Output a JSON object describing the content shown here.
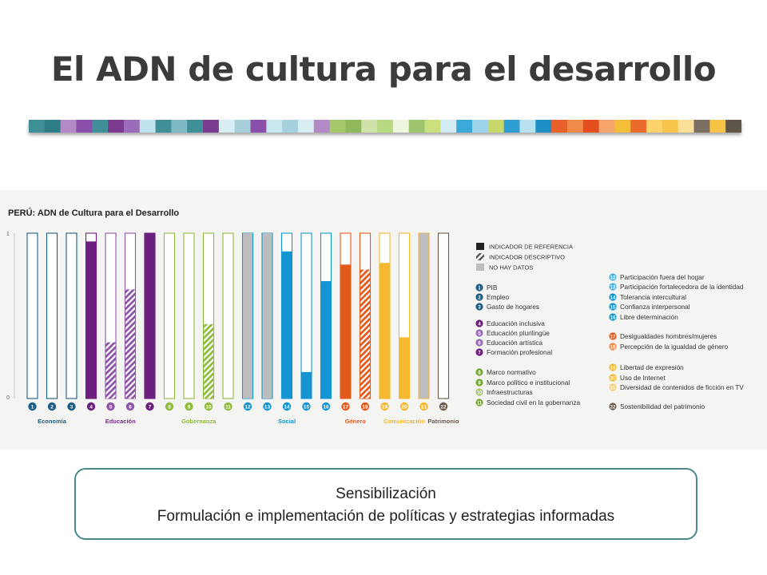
{
  "slide": {
    "title": "El ADN de cultura para el desarrollo",
    "stripe_colors": [
      "#3f8f96",
      "#2f7d86",
      "#b38ac6",
      "#8a4fa8",
      "#3f8f96",
      "#7a3b8f",
      "#9b6db8",
      "#bfe3ec",
      "#3f8f96",
      "#7fb9c4",
      "#3f8f96",
      "#7a3b8f",
      "#d6eef3",
      "#a6cfd9",
      "#8a4fa8",
      "#c8e6ee",
      "#a6d0db",
      "#d8ecf2",
      "#b38ac6",
      "#a4c86a",
      "#8fb85a",
      "#cfe3a8",
      "#b7d982",
      "#eef6e0",
      "#9cc56d",
      "#c9e07c",
      "#d2ecf3",
      "#3aa9d8",
      "#9fd5ea",
      "#c9d86a",
      "#2f9ed3",
      "#b9e1ef",
      "#1d8ec6",
      "#e8602a",
      "#f08a4b",
      "#e34f1f",
      "#f7a46d",
      "#f5be3a",
      "#e96a2a",
      "#fcd26a",
      "#f7c54a",
      "#fbe09a",
      "#7a6f62",
      "#f6c445",
      "#5e5549"
    ]
  },
  "chart_data": {
    "type": "bar",
    "title": "PERÚ: ADN de Cultura para el Desarrollo",
    "ylim": [
      0,
      1
    ],
    "y_ticks": [
      "0",
      "1"
    ],
    "categories": [
      "1",
      "2",
      "3",
      "4",
      "5",
      "6",
      "7",
      "8",
      "9",
      "10",
      "11",
      "12",
      "13",
      "14",
      "15",
      "16",
      "17",
      "18",
      "19",
      "20",
      "21",
      "22"
    ],
    "values": [
      0,
      0,
      0,
      0.95,
      0.34,
      0.66,
      1,
      0,
      0,
      0.45,
      0,
      1,
      1,
      0.89,
      0.16,
      0.71,
      0.81,
      0.78,
      0.82,
      0.37,
      1,
      0
    ],
    "fill_types": [
      "reference",
      "reference",
      "reference",
      "reference",
      "descriptive",
      "descriptive",
      "reference",
      "reference",
      "reference",
      "descriptive",
      "reference",
      "nodata",
      "nodata",
      "reference",
      "reference",
      "reference",
      "reference",
      "descriptive",
      "reference",
      "reference",
      "nodata",
      "reference"
    ],
    "colors": [
      "#1f5e86",
      "#1f5e86",
      "#1f5e86",
      "#6c1f7c",
      "#8f55a8",
      "#8f55a8",
      "#6c1f7c",
      "#8fbb3f",
      "#8fbb3f",
      "#8fbb3f",
      "#8fbb3f",
      "#1495d2",
      "#1495d2",
      "#1495d2",
      "#1495d2",
      "#1495d2",
      "#e35a1d",
      "#e35a1d",
      "#f5b82e",
      "#f5b82e",
      "#f5b82e",
      "#6b5a48"
    ],
    "groups": [
      {
        "label": "Economía",
        "color": "#1f5e86",
        "start": 0,
        "end": 2
      },
      {
        "label": "Educación",
        "color": "#7b2b8e",
        "start": 3,
        "end": 6
      },
      {
        "label": "Gobernanza",
        "color": "#8fbb3f",
        "start": 7,
        "end": 10
      },
      {
        "label": "Social",
        "color": "#1495d2",
        "start": 11,
        "end": 15
      },
      {
        "label": "Género",
        "color": "#e35a1d",
        "start": 16,
        "end": 17
      },
      {
        "label": "Comunicación",
        "color": "#f5b82e",
        "start": 18,
        "end": 20
      },
      {
        "label": "Patrimonio",
        "color": "#6b5a48",
        "start": 21,
        "end": 21
      }
    ],
    "fill_legend": [
      {
        "label": "INDICADOR DE REFERENCIA",
        "type": "reference"
      },
      {
        "label": "INDICADOR DESCRIPTIVO",
        "type": "descriptive"
      },
      {
        "label": "NO HAY DATOS",
        "type": "nodata"
      }
    ],
    "indicator_legend_left": [
      {
        "num": "1",
        "label": "PIB",
        "color": "#1f5e86"
      },
      {
        "num": "2",
        "label": "Empleo",
        "color": "#1f5e86"
      },
      {
        "num": "3",
        "label": "Gasto de hogares",
        "color": "#1f5e86"
      },
      {
        "num": "4",
        "label": "Educación inclusiva",
        "color": "#6c1f7c"
      },
      {
        "num": "5",
        "label": "Educación plurilingüe",
        "color": "#9b6db8"
      },
      {
        "num": "6",
        "label": "Educación artística",
        "color": "#9b6db8"
      },
      {
        "num": "7",
        "label": "Formación profesional",
        "color": "#6c1f7c"
      },
      {
        "num": "8",
        "label": "Marco normativo",
        "color": "#7aa835"
      },
      {
        "num": "9",
        "label": "Marco político e institucional",
        "color": "#7aa835"
      },
      {
        "num": "10",
        "label": "Infraestructuras",
        "color": "#a4c86a"
      },
      {
        "num": "11",
        "label": "Sociedad civil en la gobernanza",
        "color": "#7aa835"
      }
    ],
    "indicator_legend_right": [
      {
        "num": "12",
        "label": "Participación fuera del hogar",
        "color": "#4db3e0"
      },
      {
        "num": "13",
        "label": "Participación fortalecedora de la identidad",
        "color": "#4db3e0"
      },
      {
        "num": "14",
        "label": "Tolerancia intercultural",
        "color": "#1495d2"
      },
      {
        "num": "15",
        "label": "Confianza interpersonal",
        "color": "#1495d2"
      },
      {
        "num": "16",
        "label": "Libre determinación",
        "color": "#1495d2"
      },
      {
        "num": "17",
        "label": "Desigualdades hombres/mujeres",
        "color": "#e35a1d"
      },
      {
        "num": "18",
        "label": "Percepción de la igualdad de género",
        "color": "#f08a4b"
      },
      {
        "num": "19",
        "label": "Libertad de expresión",
        "color": "#f5b82e"
      },
      {
        "num": "20",
        "label": "Uso de Internet",
        "color": "#f5b82e"
      },
      {
        "num": "21",
        "label": "Diversidad de contenidos de ficción en TV",
        "color": "#f7ce6a"
      },
      {
        "num": "22",
        "label": "Sostenibilidad del patrimonio",
        "color": "#6b5a48"
      }
    ]
  },
  "box": {
    "line1": "Sensibilización",
    "line2": "Formulación e implementación de políticas y estrategias informadas"
  }
}
